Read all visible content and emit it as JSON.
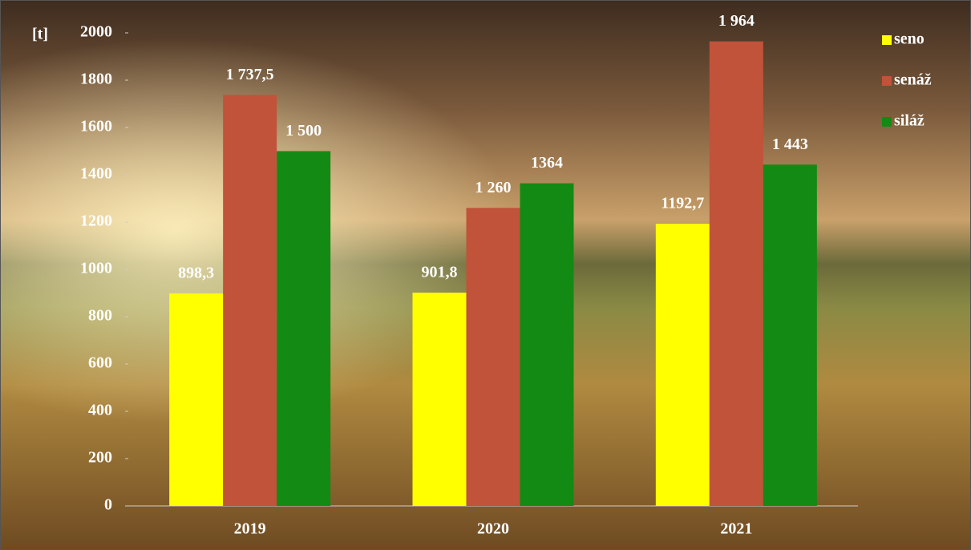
{
  "chart_data": {
    "type": "bar",
    "y_label": "[t]",
    "categories": [
      "2019",
      "2020",
      "2021"
    ],
    "series": [
      {
        "name": "seno",
        "color": "#ffff00",
        "values": [
          898.3,
          901.8,
          1192.7
        ],
        "value_labels": [
          "898,3",
          "901,8",
          "1192,7"
        ]
      },
      {
        "name": "senáž",
        "color": "#c0533a",
        "values": [
          1737.5,
          1260,
          1964
        ],
        "value_labels": [
          "1 737,5",
          "1 260",
          "1 964"
        ]
      },
      {
        "name": "siláž",
        "color": "#138a13",
        "values": [
          1500,
          1364,
          1443
        ],
        "value_labels": [
          "1 500",
          "1364",
          "1 443"
        ]
      }
    ],
    "ylim": [
      0,
      2000
    ],
    "yticks": [
      0,
      200,
      400,
      600,
      800,
      1000,
      1200,
      1400,
      1600,
      1800,
      2000
    ],
    "grid": false,
    "legend": "top-right"
  }
}
